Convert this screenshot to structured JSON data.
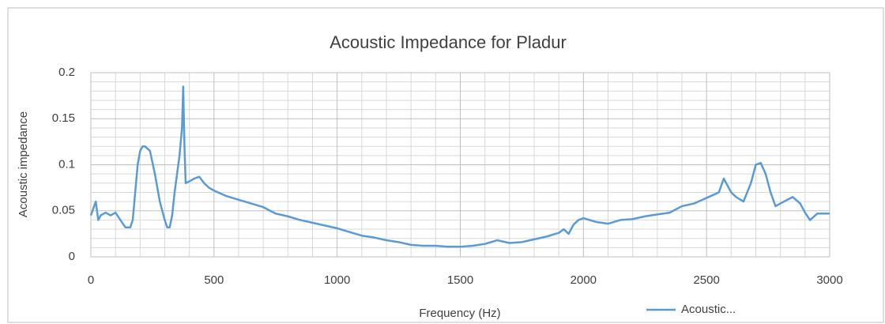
{
  "chart_data": {
    "type": "line",
    "title": "Acoustic Impedance for Pladur",
    "x_label": "Frequency (Hz)",
    "y_label": "Acoustic impedance",
    "x": [
      0,
      20,
      30,
      40,
      60,
      80,
      100,
      120,
      140,
      160,
      170,
      180,
      190,
      200,
      210,
      220,
      240,
      260,
      280,
      300,
      310,
      320,
      330,
      340,
      360,
      370,
      375,
      380,
      385,
      400,
      420,
      440,
      460,
      480,
      500,
      550,
      600,
      650,
      700,
      750,
      800,
      850,
      900,
      950,
      1000,
      1050,
      1100,
      1150,
      1200,
      1250,
      1300,
      1350,
      1400,
      1450,
      1500,
      1550,
      1600,
      1650,
      1700,
      1750,
      1800,
      1850,
      1900,
      1920,
      1940,
      1960,
      1980,
      2000,
      2050,
      2100,
      2150,
      2200,
      2250,
      2300,
      2350,
      2400,
      2450,
      2500,
      2550,
      2570,
      2600,
      2620,
      2650,
      2680,
      2700,
      2720,
      2740,
      2760,
      2780,
      2800,
      2850,
      2880,
      2900,
      2920,
      2950,
      3000
    ],
    "series": [
      {
        "name": "Acoustic...",
        "color": "#5b9bd5",
        "values": [
          0.045,
          0.06,
          0.04,
          0.045,
          0.048,
          0.045,
          0.048,
          0.04,
          0.032,
          0.032,
          0.04,
          0.07,
          0.1,
          0.115,
          0.12,
          0.12,
          0.115,
          0.09,
          0.06,
          0.04,
          0.032,
          0.032,
          0.045,
          0.07,
          0.11,
          0.14,
          0.185,
          0.12,
          0.08,
          0.082,
          0.085,
          0.087,
          0.08,
          0.075,
          0.072,
          0.066,
          0.062,
          0.058,
          0.054,
          0.047,
          0.044,
          0.04,
          0.037,
          0.034,
          0.031,
          0.027,
          0.023,
          0.021,
          0.018,
          0.016,
          0.013,
          0.012,
          0.012,
          0.011,
          0.011,
          0.012,
          0.014,
          0.018,
          0.015,
          0.016,
          0.019,
          0.022,
          0.026,
          0.03,
          0.025,
          0.035,
          0.04,
          0.042,
          0.038,
          0.036,
          0.04,
          0.041,
          0.044,
          0.046,
          0.048,
          0.055,
          0.058,
          0.064,
          0.07,
          0.085,
          0.07,
          0.065,
          0.06,
          0.08,
          0.1,
          0.102,
          0.09,
          0.07,
          0.055,
          0.058,
          0.065,
          0.058,
          0.048,
          0.04,
          0.047,
          0.047
        ]
      }
    ],
    "xlim": [
      0,
      3000
    ],
    "xticks": [
      0,
      500,
      1000,
      1500,
      2000,
      2500,
      3000
    ],
    "xminor": [
      100,
      200,
      300,
      400,
      600,
      700,
      800,
      900,
      1100,
      1200,
      1300,
      1400,
      1600,
      1700,
      1800,
      1900,
      2100,
      2200,
      2300,
      2400,
      2600,
      2700,
      2800,
      2900
    ],
    "ylim": [
      0,
      0.2
    ],
    "yticks": [
      0,
      0.05,
      0.1,
      0.15,
      0.2
    ],
    "yminor": [
      0.01,
      0.02,
      0.03,
      0.04,
      0.06,
      0.07,
      0.08,
      0.09,
      0.11,
      0.12,
      0.13,
      0.14,
      0.16,
      0.17,
      0.18,
      0.19
    ],
    "grid": true,
    "legend": "bottom-right"
  }
}
